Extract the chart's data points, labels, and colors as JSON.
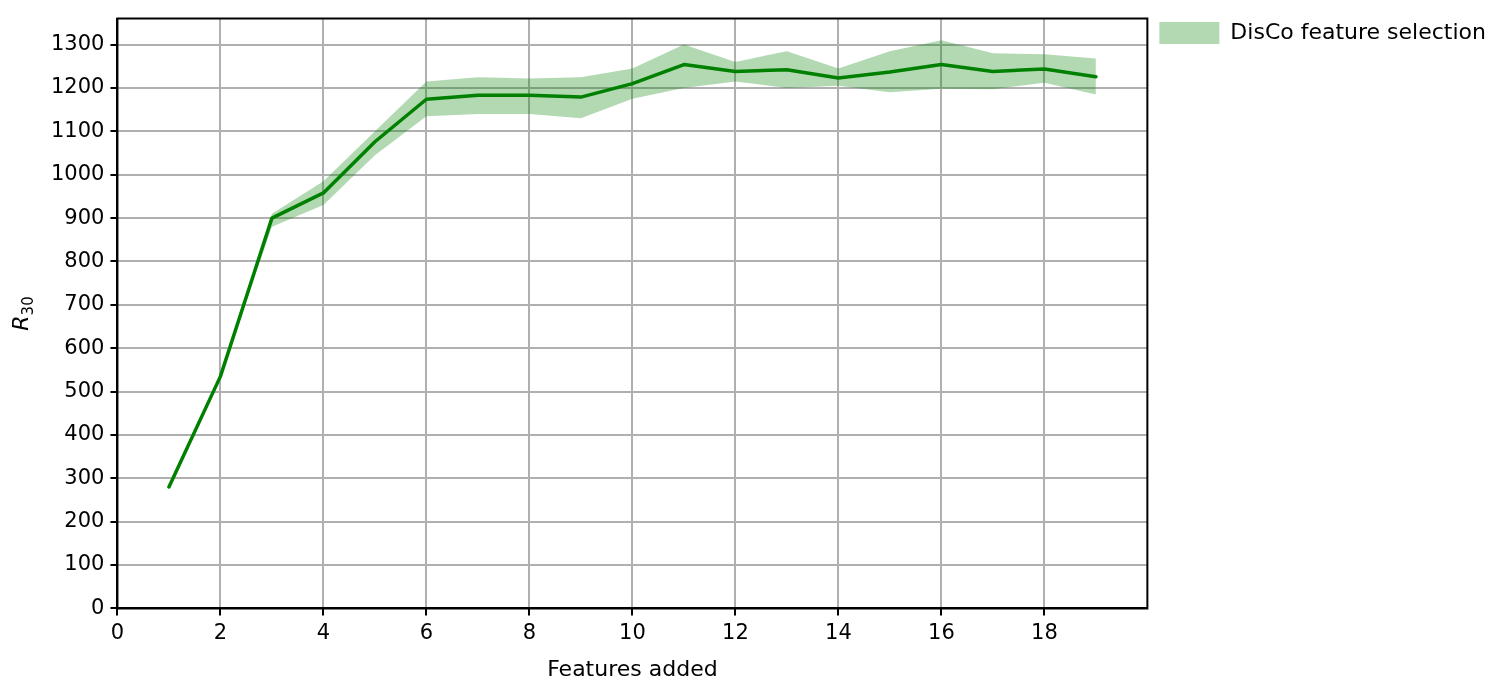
{
  "chart_data": {
    "type": "line",
    "xlabel": "Features added",
    "ylabel": "R$_{30}$",
    "x": [
      1,
      2,
      3,
      4,
      5,
      6,
      7,
      8,
      9,
      10,
      11,
      12,
      13,
      14,
      15,
      16,
      17,
      18,
      19
    ],
    "series": [
      {
        "name": "DisCo feature selection",
        "color": "#008000",
        "values": [
          280,
          535,
          900,
          958,
          1076,
          1174,
          1183,
          1183,
          1179,
          1210,
          1254,
          1238,
          1242,
          1223,
          1237,
          1254,
          1238,
          1244,
          1226
        ],
        "lower": [
          280,
          535,
          880,
          930,
          1045,
          1135,
          1140,
          1140,
          1130,
          1175,
          1200,
          1215,
          1200,
          1205,
          1190,
          1198,
          1197,
          1212,
          1185
        ],
        "upper": [
          280,
          535,
          910,
          985,
          1100,
          1215,
          1225,
          1222,
          1225,
          1245,
          1300,
          1260,
          1285,
          1245,
          1285,
          1310,
          1280,
          1278,
          1268
        ]
      }
    ],
    "xlim": [
      0,
      20
    ],
    "xticks": [
      0,
      2,
      4,
      6,
      8,
      10,
      12,
      14,
      16,
      18
    ],
    "ylim": [
      0,
      1360
    ],
    "yticks": [
      0,
      100,
      200,
      300,
      400,
      500,
      600,
      700,
      800,
      900,
      1000,
      1100,
      1200,
      1300
    ],
    "grid": true,
    "legend": "right",
    "marker": "none",
    "line_style": "solid"
  }
}
